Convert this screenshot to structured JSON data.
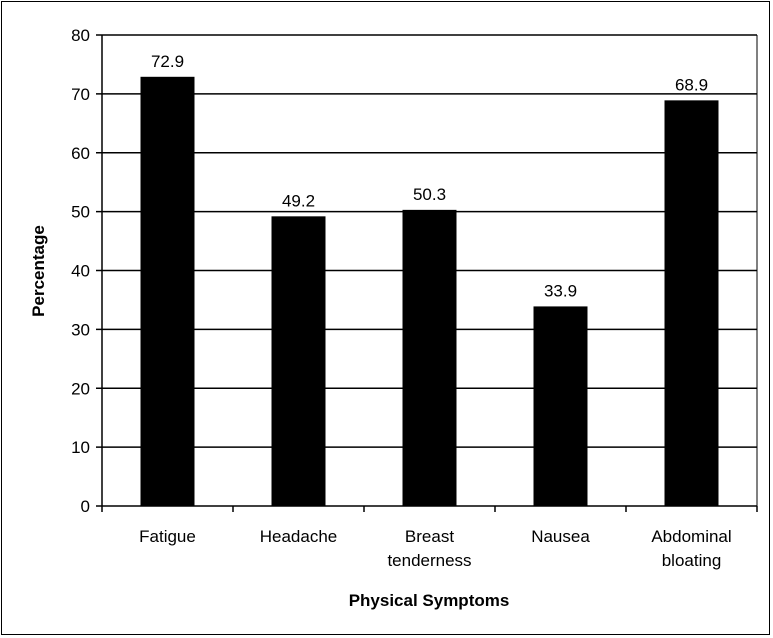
{
  "chart_data": {
    "type": "bar",
    "title": "",
    "xlabel": "Physical Symptoms",
    "ylabel": "Percentage",
    "categories": [
      [
        "Fatigue"
      ],
      [
        "Headache"
      ],
      [
        "Breast",
        "tenderness"
      ],
      [
        "Nausea"
      ],
      [
        "Abdominal",
        "bloating"
      ]
    ],
    "values": [
      72.9,
      49.2,
      50.3,
      33.9,
      68.9
    ],
    "data_labels": [
      "72.9",
      "49.2",
      "50.3",
      "33.9",
      "68.9"
    ],
    "ylim": [
      0,
      80
    ],
    "yticks": [
      0,
      10,
      20,
      30,
      40,
      50,
      60,
      70,
      80
    ],
    "grid": true,
    "legend": "none",
    "colors": {
      "bar": "#000000",
      "grid": "#000000",
      "background": "#ffffff"
    }
  }
}
